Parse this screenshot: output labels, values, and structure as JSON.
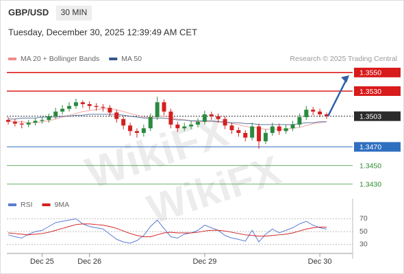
{
  "header": {
    "symbol": "GBP/USD",
    "timeframe": "30 MIN",
    "timestamp": "Tuesday, December 30, 2025 12:39:49 AM CET"
  },
  "chart_data": [
    {
      "type": "candlestick",
      "source": "Research © 2025 Trading Central",
      "watermark": "WikiFX",
      "up_color": "#2a8a3e",
      "down_color": "#d42020",
      "categories": [
        null,
        null,
        null,
        null,
        null,
        "Dec 25",
        null,
        null,
        null,
        null,
        null,
        null,
        "Dec 26",
        null,
        null,
        null,
        null,
        null,
        null,
        null,
        null,
        null,
        null,
        null,
        null,
        null,
        null,
        null,
        null,
        "Dec 29",
        null,
        null,
        null,
        null,
        null,
        null,
        null,
        null,
        null,
        null,
        null,
        null,
        null,
        null,
        null,
        null,
        "Dec 30",
        null
      ],
      "open": [
        1.3499,
        1.3497,
        1.3495,
        1.3494,
        1.3496,
        1.3498,
        1.3499,
        1.3503,
        1.3508,
        1.3511,
        1.3514,
        1.3518,
        1.3516,
        1.3514,
        1.3513,
        1.3512,
        1.3507,
        1.35,
        1.3493,
        1.3487,
        1.3485,
        1.349,
        1.3502,
        1.3518,
        1.3508,
        1.3494,
        1.349,
        1.3492,
        1.3494,
        1.3497,
        1.3505,
        1.3503,
        1.35,
        1.3493,
        1.3488,
        1.3485,
        1.348,
        1.3492,
        1.3476,
        1.3485,
        1.3492,
        1.3487,
        1.349,
        1.3494,
        1.3502,
        1.351,
        1.3508,
        1.3505
      ],
      "high": [
        1.3502,
        1.35,
        1.3498,
        1.3499,
        1.3501,
        1.3502,
        1.3506,
        1.3512,
        1.3515,
        1.3518,
        1.3522,
        1.352,
        1.3519,
        1.3517,
        1.3516,
        1.3515,
        1.351,
        1.3503,
        1.3496,
        1.349,
        1.3494,
        1.3506,
        1.3524,
        1.3521,
        1.3511,
        1.3497,
        1.3496,
        1.3498,
        1.3501,
        1.3509,
        1.3508,
        1.3506,
        1.3503,
        1.3496,
        1.3491,
        1.3488,
        1.3496,
        1.3495,
        1.3489,
        1.3496,
        1.3495,
        1.3494,
        1.3498,
        1.3506,
        1.3514,
        1.3513,
        1.3511,
        1.3507
      ],
      "low": [
        1.3494,
        1.3492,
        1.349,
        1.3491,
        1.3493,
        1.3495,
        1.3496,
        1.35,
        1.3505,
        1.3508,
        1.3511,
        1.3512,
        1.351,
        1.3509,
        1.3508,
        1.3503,
        1.3496,
        1.3489,
        1.3482,
        1.348,
        1.3481,
        1.3487,
        1.3499,
        1.3504,
        1.349,
        1.3486,
        1.3487,
        1.3489,
        1.3491,
        1.3494,
        1.3499,
        1.3496,
        1.3489,
        1.3484,
        1.3481,
        1.3476,
        1.3477,
        1.3468,
        1.3473,
        1.3482,
        1.3483,
        1.3484,
        1.3487,
        1.3491,
        1.3499,
        1.3504,
        1.3502,
        1.35
      ],
      "close": [
        1.3497,
        1.3495,
        1.3494,
        1.3496,
        1.3498,
        1.3499,
        1.3503,
        1.3508,
        1.3511,
        1.3514,
        1.3518,
        1.3516,
        1.3514,
        1.3513,
        1.3512,
        1.3507,
        1.35,
        1.3493,
        1.3487,
        1.3485,
        1.349,
        1.3502,
        1.3518,
        1.3508,
        1.3494,
        1.349,
        1.3492,
        1.3494,
        1.3497,
        1.3505,
        1.3503,
        1.35,
        1.3493,
        1.3488,
        1.3485,
        1.348,
        1.3492,
        1.3476,
        1.3485,
        1.3492,
        1.3487,
        1.349,
        1.3494,
        1.3502,
        1.351,
        1.3508,
        1.3505,
        1.3503
      ],
      "series": [
        {
          "name": "MA 20 + Bollinger Bands",
          "color": "#f08c8c",
          "values": [
            1.3498,
            1.3497,
            1.3497,
            1.3496,
            1.3496,
            1.3497,
            1.3498,
            1.35,
            1.3502,
            1.3504,
            1.3506,
            1.3508,
            1.3509,
            1.351,
            1.3511,
            1.3511,
            1.351,
            1.3508,
            1.3506,
            1.3504,
            1.3502,
            1.3502,
            1.3503,
            1.3503,
            1.3502,
            1.35,
            1.3499,
            1.3498,
            1.3497,
            1.3497,
            1.3497,
            1.3497,
            1.3496,
            1.3495,
            1.3494,
            1.3492,
            1.3491,
            1.349,
            1.3489,
            1.3489,
            1.3489,
            1.3489,
            1.349,
            1.3491,
            1.3493,
            1.3495,
            1.3496,
            1.3497
          ]
        },
        {
          "name": "MA 50",
          "color": "#35558a",
          "values": [
            1.35,
            1.35,
            1.3501,
            1.3501,
            1.3501,
            1.3502,
            1.3502,
            1.3502,
            1.3503,
            1.3503,
            1.3504,
            1.3504,
            1.3505,
            1.3505,
            1.3505,
            1.3505,
            1.3505,
            1.3504,
            1.3503,
            1.3502,
            1.3501,
            1.3501,
            1.3501,
            1.3501,
            1.35,
            1.3499,
            1.3499,
            1.3498,
            1.3498,
            1.3498,
            1.3498,
            1.3497,
            1.3497,
            1.3496,
            1.3496,
            1.3495,
            1.3495,
            1.3494,
            1.3494,
            1.3494,
            1.3494,
            1.3494,
            1.3494,
            1.3495,
            1.3496,
            1.3496,
            1.3497,
            1.3497
          ]
        }
      ],
      "ylim": [
        1.3418,
        1.3558
      ],
      "levels": [
        {
          "value": 1.355,
          "label": "1.3550",
          "color": "#d81b1b",
          "line": "solid",
          "label_style": "box"
        },
        {
          "value": 1.353,
          "label": "1.3530",
          "color": "#d81b1b",
          "line": "solid",
          "label_style": "box"
        },
        {
          "value": 1.3503,
          "label": "1.3503",
          "color": "#2b2b2b",
          "line": "dotted",
          "label_style": "box"
        },
        {
          "value": 1.347,
          "label": "1.3470",
          "color": "#2f6fc0",
          "line": "solid",
          "label_style": "box"
        },
        {
          "value": 1.345,
          "label": "1.3450",
          "color": "#2e8b2e",
          "line": "solid",
          "label_style": "text"
        },
        {
          "value": 1.343,
          "label": "1.3430",
          "color": "#2e8b2e",
          "line": "solid",
          "label_style": "text"
        }
      ]
    },
    {
      "type": "line",
      "grid": true,
      "ylim": [
        16,
        80
      ],
      "yticks": [
        30,
        50,
        70
      ],
      "series": [
        {
          "name": "RSI",
          "color": "#5b7bd5",
          "values": [
            45,
            42,
            40,
            46,
            50,
            52,
            58,
            64,
            66,
            68,
            70,
            62,
            58,
            56,
            54,
            46,
            38,
            34,
            32,
            36,
            44,
            58,
            68,
            55,
            42,
            40,
            46,
            48,
            52,
            60,
            56,
            52,
            44,
            40,
            38,
            35,
            52,
            34,
            46,
            54,
            48,
            52,
            56,
            62,
            66,
            60,
            56,
            54
          ]
        },
        {
          "name": "9MA",
          "color": "#d42020",
          "values": [
            48,
            47,
            46,
            45,
            46,
            47,
            49,
            52,
            55,
            58,
            61,
            62,
            62,
            61,
            60,
            58,
            55,
            51,
            47,
            44,
            42,
            42,
            45,
            48,
            49,
            48,
            48,
            48,
            49,
            51,
            52,
            52,
            51,
            49,
            47,
            45,
            44,
            43,
            43,
            44,
            45,
            46,
            48,
            51,
            54,
            56,
            57,
            57
          ]
        }
      ]
    }
  ]
}
